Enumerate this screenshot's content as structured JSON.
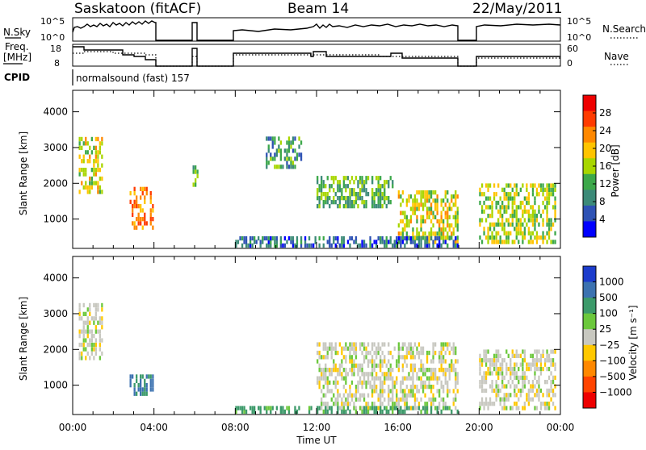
{
  "header": {
    "station": "Saskatoon (fitACF)",
    "beam": "Beam 14",
    "date": "22/May/2011"
  },
  "noise_panel": {
    "left_label": "N.Sky",
    "right_label": "N.Search",
    "left_ticks": [
      "10^5",
      "10^0"
    ],
    "right_ticks": [
      "10^5",
      "10^0"
    ]
  },
  "freq_panel": {
    "left_label_line1": "Freq.",
    "left_label_line2": "[MHz]",
    "right_label": "Nave",
    "left_ticks": [
      "18",
      "8"
    ],
    "right_ticks": [
      "60",
      "0"
    ]
  },
  "cpid": {
    "label": "CPID",
    "value": "normalsound (fast) 157"
  },
  "power_colorbar": {
    "title": "Power [dB]",
    "ticks": [
      "28",
      "24",
      "20",
      "16",
      "12",
      "8",
      "4"
    ],
    "colors": [
      "#ee0000",
      "#ff3b00",
      "#ff8800",
      "#ffc400",
      "#a8d600",
      "#3ca84a",
      "#3c8a78",
      "#2e52b4",
      "#0000ff"
    ]
  },
  "velocity_colorbar": {
    "title": "Velocity [m s⁻¹]",
    "ticks": [
      "1000",
      "500",
      "100",
      "25",
      "−25",
      "−100",
      "−500",
      "−1000"
    ],
    "colors": [
      "#1c3ccc",
      "#3c72b0",
      "#3c9a6a",
      "#6cc83c",
      "#c8c8c0",
      "#ffc800",
      "#ff8800",
      "#ff4400",
      "#ee0000"
    ]
  },
  "chart_data": {
    "type": "heatmap",
    "x_axis": {
      "label": "Time UT",
      "range_hours": [
        0,
        24
      ],
      "tick_labels": [
        "00:00",
        "04:00",
        "08:00",
        "12:00",
        "16:00",
        "20:00",
        "00:00"
      ]
    },
    "y_axis": {
      "label": "Slant Range [km]",
      "range": [
        180,
        4600
      ],
      "ticks": [
        1000,
        2000,
        3000,
        4000
      ]
    },
    "power_echo_regions": [
      {
        "t0": 0.3,
        "t1": 1.5,
        "r0": 1700,
        "r1": 3300,
        "level": 18
      },
      {
        "t0": 2.8,
        "t1": 4.0,
        "r0": 700,
        "r1": 1900,
        "level": 24
      },
      {
        "t0": 5.9,
        "t1": 6.2,
        "r0": 1900,
        "r1": 2500,
        "level": 14
      },
      {
        "t0": 9.5,
        "t1": 11.3,
        "r0": 2400,
        "r1": 3300,
        "level": 10
      },
      {
        "t0": 12.0,
        "t1": 15.8,
        "r0": 1300,
        "r1": 2200,
        "level": 12
      },
      {
        "t0": 16.0,
        "t1": 19.0,
        "r0": 300,
        "r1": 1800,
        "level": 18
      },
      {
        "t0": 20.0,
        "t1": 23.8,
        "r0": 300,
        "r1": 2000,
        "level": 16
      },
      {
        "t0": 8.0,
        "t1": 19.0,
        "r0": 200,
        "r1": 500,
        "level": 6
      }
    ],
    "velocity_echo_regions": [
      {
        "t0": 0.3,
        "t1": 1.5,
        "r0": 1700,
        "r1": 3300,
        "velocity": 0
      },
      {
        "t0": 2.8,
        "t1": 4.0,
        "r0": 700,
        "r1": 1300,
        "velocity": 300
      },
      {
        "t0": 12.0,
        "t1": 19.0,
        "r0": 300,
        "r1": 2200,
        "velocity": 0
      },
      {
        "t0": 20.0,
        "t1": 23.8,
        "r0": 300,
        "r1": 2000,
        "velocity": 0
      },
      {
        "t0": 8.0,
        "t1": 19.0,
        "r0": 200,
        "r1": 400,
        "velocity": 80
      }
    ]
  }
}
